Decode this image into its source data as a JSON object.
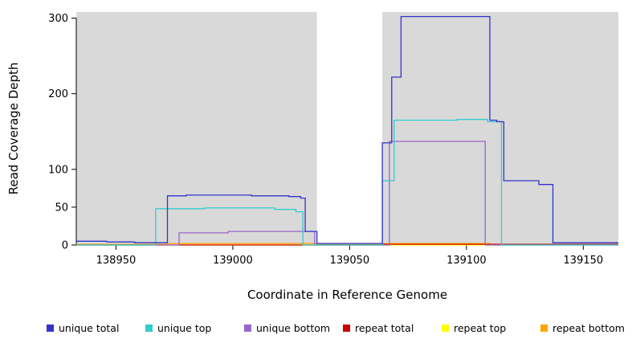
{
  "figure": {
    "ylabel": "Read Coverage Depth",
    "xlabel": "Coordinate in Reference Genome"
  },
  "chart_data": {
    "type": "line",
    "step": true,
    "title": "",
    "xlabel": "Coordinate in Reference Genome",
    "ylabel": "Read Coverage Depth",
    "xlim": [
      138933,
      139165
    ],
    "ylim": [
      0,
      308
    ],
    "x_ticks": [
      138950,
      139000,
      139050,
      139100,
      139150
    ],
    "y_ticks": [
      0,
      50,
      100,
      200,
      300
    ],
    "grid": false,
    "plot_bg": "#d9d9d9",
    "masked_region": {
      "from": 139036,
      "to": 139064,
      "color": "#ffffff"
    },
    "legend_position": "bottom",
    "series": [
      {
        "name": "unique total",
        "color": "#3333cc",
        "points": [
          [
            138933,
            5
          ],
          [
            138946,
            4
          ],
          [
            138958,
            3
          ],
          [
            138972,
            65
          ],
          [
            138980,
            66
          ],
          [
            139008,
            65
          ],
          [
            139024,
            64
          ],
          [
            139029,
            62
          ],
          [
            139031,
            18
          ],
          [
            139036,
            2
          ],
          [
            139064,
            135
          ],
          [
            139068,
            222
          ],
          [
            139072,
            302
          ],
          [
            139110,
            165
          ],
          [
            139113,
            163
          ],
          [
            139116,
            85
          ],
          [
            139131,
            80
          ],
          [
            139137,
            3
          ]
        ]
      },
      {
        "name": "unique top",
        "color": "#33cccc",
        "points": [
          [
            138933,
            0
          ],
          [
            138967,
            48
          ],
          [
            138988,
            49
          ],
          [
            139018,
            47
          ],
          [
            139027,
            44
          ],
          [
            139030,
            0
          ],
          [
            139064,
            85
          ],
          [
            139069,
            165
          ],
          [
            139096,
            166
          ],
          [
            139109,
            163
          ],
          [
            139115,
            0
          ]
        ]
      },
      {
        "name": "unique bottom",
        "color": "#9966cc",
        "points": [
          [
            138933,
            0
          ],
          [
            138977,
            16
          ],
          [
            138998,
            18
          ],
          [
            139031,
            18
          ],
          [
            139035,
            0
          ],
          [
            139067,
            137
          ],
          [
            139106,
            137
          ],
          [
            139108,
            0
          ]
        ]
      },
      {
        "name": "repeat total",
        "color": "#cc0000",
        "points": [
          [
            138933,
            0
          ],
          [
            139064,
            1
          ]
        ]
      },
      {
        "name": "repeat top",
        "color": "#ffff00",
        "points": [
          [
            138933,
            0
          ]
        ]
      },
      {
        "name": "repeat bottom",
        "color": "#ffa500",
        "points": [
          [
            138933,
            1
          ],
          [
            138972,
            2
          ],
          [
            139036,
            1
          ],
          [
            139064,
            2
          ],
          [
            139110,
            1
          ]
        ]
      }
    ]
  }
}
